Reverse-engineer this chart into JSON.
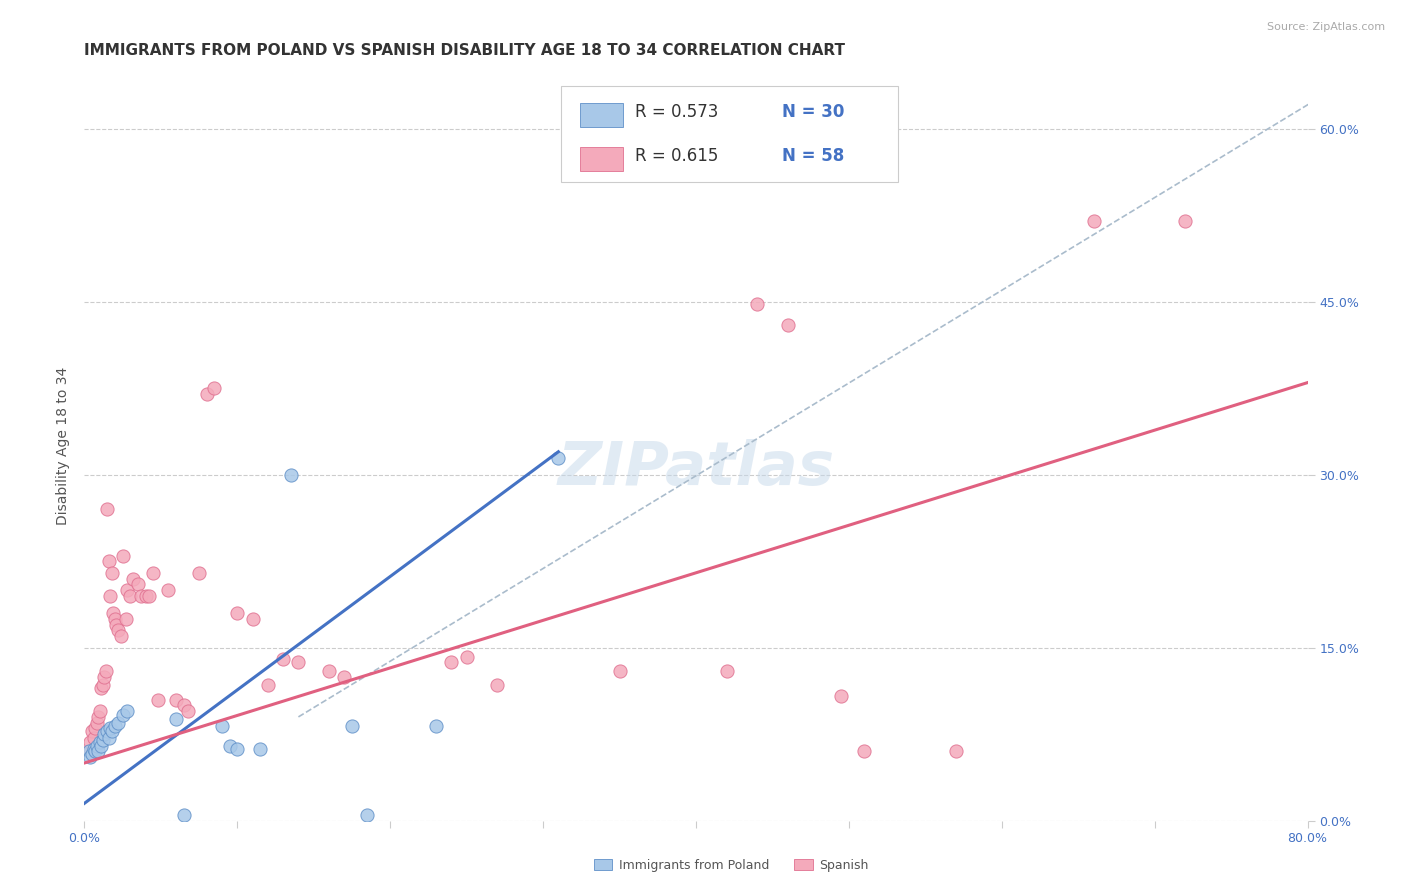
{
  "title": "IMMIGRANTS FROM POLAND VS SPANISH DISABILITY AGE 18 TO 34 CORRELATION CHART",
  "source": "Source: ZipAtlas.com",
  "ylabel": "Disability Age 18 to 34",
  "xlim": [
    0,
    0.8
  ],
  "ylim": [
    0,
    0.65
  ],
  "xtick_positions": [
    0.0,
    0.1,
    0.2,
    0.3,
    0.4,
    0.5,
    0.6,
    0.7,
    0.8
  ],
  "xticklabels": [
    "0.0%",
    "",
    "",
    "",
    "",
    "",
    "",
    "",
    "80.0%"
  ],
  "yticks_right": [
    0.0,
    0.15,
    0.3,
    0.45,
    0.6
  ],
  "ytick_right_labels": [
    "0.0%",
    "15.0%",
    "30.0%",
    "45.0%",
    "60.0%"
  ],
  "legend_r1": "R = 0.573",
  "legend_n1": "N = 30",
  "legend_r2": "R = 0.615",
  "legend_n2": "N = 58",
  "blue_fill": "#A8C8E8",
  "blue_edge": "#6090C8",
  "pink_fill": "#F4AABB",
  "pink_edge": "#E07090",
  "blue_line": "#4472C4",
  "pink_line": "#E06080",
  "dashed_color": "#AABCCC",
  "grid_color": "#CCCCCC",
  "bg_color": "#FFFFFF",
  "tick_color": "#4472C4",
  "watermark": "ZIPatlas",
  "title_fontsize": 11,
  "axis_label_fontsize": 10,
  "tick_fontsize": 9,
  "legend_fontsize": 12,
  "legend_text_color": "#4472C4",
  "blue_scatter": [
    [
      0.003,
      0.06
    ],
    [
      0.004,
      0.055
    ],
    [
      0.005,
      0.058
    ],
    [
      0.006,
      0.062
    ],
    [
      0.007,
      0.06
    ],
    [
      0.008,
      0.065
    ],
    [
      0.009,
      0.06
    ],
    [
      0.01,
      0.068
    ],
    [
      0.011,
      0.065
    ],
    [
      0.012,
      0.07
    ],
    [
      0.013,
      0.075
    ],
    [
      0.015,
      0.078
    ],
    [
      0.016,
      0.072
    ],
    [
      0.017,
      0.08
    ],
    [
      0.018,
      0.078
    ],
    [
      0.02,
      0.082
    ],
    [
      0.022,
      0.085
    ],
    [
      0.025,
      0.092
    ],
    [
      0.028,
      0.095
    ],
    [
      0.06,
      0.088
    ],
    [
      0.065,
      0.005
    ],
    [
      0.09,
      0.082
    ],
    [
      0.095,
      0.065
    ],
    [
      0.1,
      0.062
    ],
    [
      0.115,
      0.062
    ],
    [
      0.135,
      0.3
    ],
    [
      0.175,
      0.082
    ],
    [
      0.185,
      0.005
    ],
    [
      0.23,
      0.082
    ],
    [
      0.31,
      0.315
    ]
  ],
  "pink_scatter": [
    [
      0.003,
      0.06
    ],
    [
      0.004,
      0.068
    ],
    [
      0.005,
      0.078
    ],
    [
      0.006,
      0.072
    ],
    [
      0.007,
      0.08
    ],
    [
      0.008,
      0.085
    ],
    [
      0.009,
      0.09
    ],
    [
      0.01,
      0.095
    ],
    [
      0.011,
      0.115
    ],
    [
      0.012,
      0.118
    ],
    [
      0.013,
      0.125
    ],
    [
      0.014,
      0.13
    ],
    [
      0.015,
      0.27
    ],
    [
      0.016,
      0.225
    ],
    [
      0.017,
      0.195
    ],
    [
      0.018,
      0.215
    ],
    [
      0.019,
      0.18
    ],
    [
      0.02,
      0.175
    ],
    [
      0.021,
      0.17
    ],
    [
      0.022,
      0.165
    ],
    [
      0.024,
      0.16
    ],
    [
      0.025,
      0.23
    ],
    [
      0.027,
      0.175
    ],
    [
      0.028,
      0.2
    ],
    [
      0.03,
      0.195
    ],
    [
      0.032,
      0.21
    ],
    [
      0.035,
      0.205
    ],
    [
      0.037,
      0.195
    ],
    [
      0.04,
      0.195
    ],
    [
      0.042,
      0.195
    ],
    [
      0.045,
      0.215
    ],
    [
      0.048,
      0.105
    ],
    [
      0.055,
      0.2
    ],
    [
      0.06,
      0.105
    ],
    [
      0.065,
      0.1
    ],
    [
      0.068,
      0.095
    ],
    [
      0.075,
      0.215
    ],
    [
      0.08,
      0.37
    ],
    [
      0.085,
      0.375
    ],
    [
      0.1,
      0.18
    ],
    [
      0.11,
      0.175
    ],
    [
      0.12,
      0.118
    ],
    [
      0.13,
      0.14
    ],
    [
      0.14,
      0.138
    ],
    [
      0.16,
      0.13
    ],
    [
      0.17,
      0.125
    ],
    [
      0.24,
      0.138
    ],
    [
      0.25,
      0.142
    ],
    [
      0.27,
      0.118
    ],
    [
      0.35,
      0.13
    ],
    [
      0.42,
      0.13
    ],
    [
      0.44,
      0.448
    ],
    [
      0.46,
      0.43
    ],
    [
      0.495,
      0.108
    ],
    [
      0.51,
      0.06
    ],
    [
      0.57,
      0.06
    ],
    [
      0.66,
      0.52
    ],
    [
      0.72,
      0.52
    ]
  ]
}
